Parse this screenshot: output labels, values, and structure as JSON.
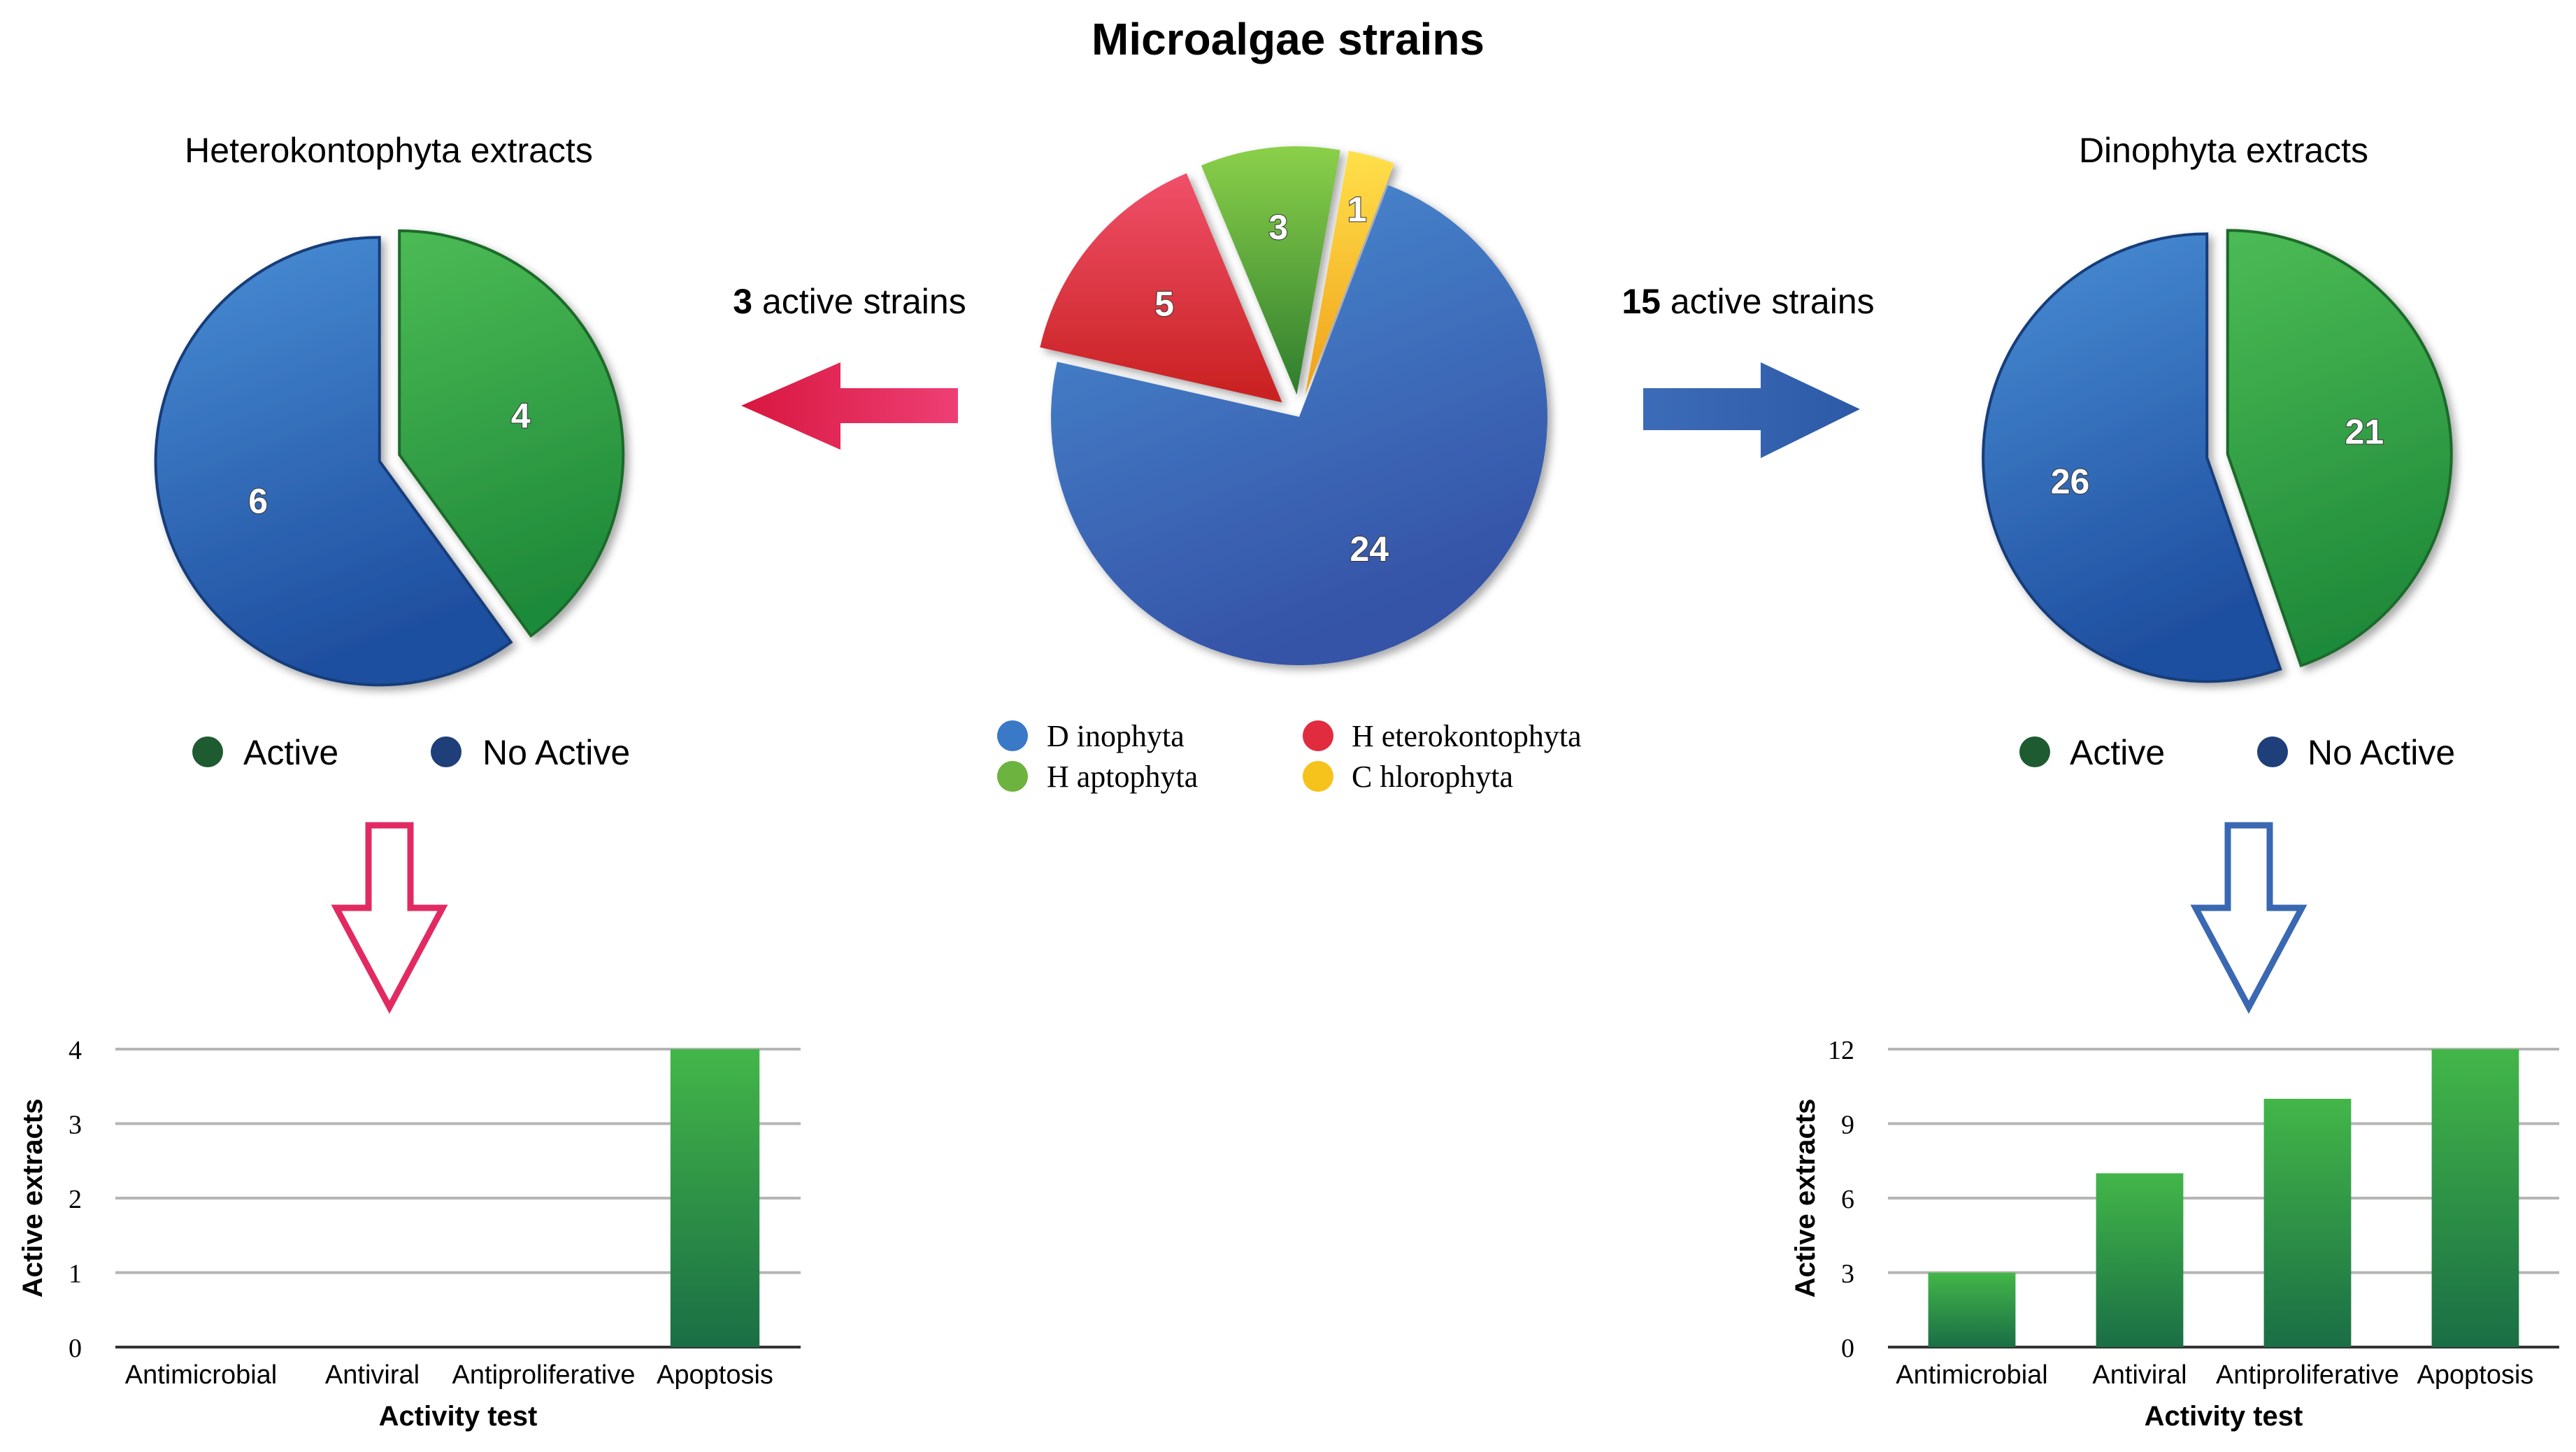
{
  "title": "Microalgae strains",
  "colors": {
    "blue": "#2f6ab8",
    "green": "#3aa84a",
    "red": "#e12c3f",
    "lightgreen": "#6cb33f",
    "yellow": "#f6c21c",
    "pink": "#e22a62",
    "arrow_blue": "#3a68b2",
    "dark_green": "#1e5b31",
    "dark_blue": "#1f3f7a"
  },
  "arrows": {
    "left_count": "3",
    "left_text": " active strains",
    "right_count": "15",
    "right_text": " active strains"
  },
  "chart_data": [
    {
      "id": "main-pie",
      "type": "pie",
      "title": "Microalgae strains",
      "categories": [
        "Dinophyta",
        "Heterokontophyta",
        "Haptophyta",
        "Chlorophyta"
      ],
      "values": [
        24,
        5,
        3,
        1
      ],
      "legend": [
        "D inophyta",
        "H eterokontophyta",
        "H aptophyta",
        "C hlorophyta"
      ],
      "legend_position": "bottom"
    },
    {
      "id": "hetero-pie",
      "type": "pie",
      "title": "Heterokontophyta extracts",
      "categories": [
        "Active",
        "No Active"
      ],
      "values": [
        4,
        6
      ],
      "legend": [
        "Active",
        "No Active"
      ],
      "legend_position": "bottom"
    },
    {
      "id": "dino-pie",
      "type": "pie",
      "title": "Dinophyta extracts",
      "categories": [
        "Active",
        "No Active"
      ],
      "values": [
        21,
        26
      ],
      "legend": [
        "Active",
        "No Active"
      ],
      "legend_position": "bottom"
    },
    {
      "id": "hetero-bar",
      "type": "bar",
      "categories": [
        "Antimicrobial",
        "Antiviral",
        "Antiproliferative",
        "Apoptosis"
      ],
      "values": [
        0,
        0,
        0,
        4
      ],
      "xlabel": "Activity test",
      "ylabel": "Active extracts",
      "ylim": [
        0,
        4
      ],
      "yticks": [
        0,
        1,
        2,
        3,
        4
      ],
      "grid": true
    },
    {
      "id": "dino-bar",
      "type": "bar",
      "categories": [
        "Antimicrobial",
        "Antiviral",
        "Antiproliferative",
        "Apoptosis"
      ],
      "values": [
        3,
        7,
        10,
        12
      ],
      "xlabel": "Activity test",
      "ylabel": "Active extracts",
      "ylim": [
        0,
        12
      ],
      "yticks": [
        0,
        3,
        6,
        9,
        12
      ],
      "grid": true
    }
  ]
}
